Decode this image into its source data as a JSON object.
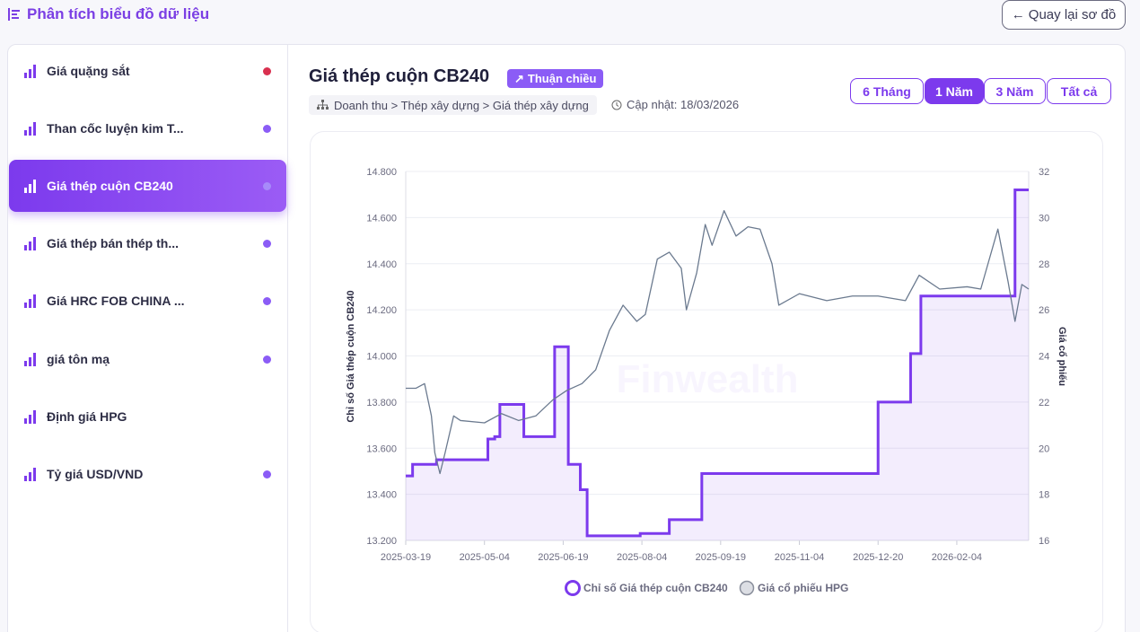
{
  "app": {
    "title": "Phân tích biểu đồ dữ liệu",
    "back_label": "Quay lại sơ đồ"
  },
  "sidebar": {
    "items": [
      {
        "label": "Giá quặng sắt",
        "dot_color": "#d9304f",
        "active": false
      },
      {
        "label": "Than cốc luyện kim T...",
        "dot_color": "#8b5cf6",
        "active": false
      },
      {
        "label": "Giá thép cuộn CB240",
        "dot_color": "#a78bfa",
        "active": true
      },
      {
        "label": "Giá thép bán thép th...",
        "dot_color": "#8b5cf6",
        "active": false
      },
      {
        "label": "Giá HRC FOB CHINA ...",
        "dot_color": "#8b5cf6",
        "active": false
      },
      {
        "label": "giá tôn mạ",
        "dot_color": "#8b5cf6",
        "active": false
      },
      {
        "label": "Định giá HPG",
        "dot_color": null,
        "active": false
      },
      {
        "label": "Tỷ giá USD/VND",
        "dot_color": "#8b5cf6",
        "active": false
      }
    ]
  },
  "header": {
    "title": "Giá thép cuộn CB240",
    "badge": "Thuận chiều",
    "breadcrumb": "Doanh thu > Thép xây dựng > Giá thép xây dựng",
    "updated": "Cập nhật: 18/03/2026"
  },
  "ranges": [
    {
      "label": "6 Tháng",
      "active": false
    },
    {
      "label": "1 Năm",
      "active": true
    },
    {
      "label": "3 Năm",
      "active": false
    },
    {
      "label": "Tất cả",
      "active": false
    }
  ],
  "colors": {
    "accent": "#7c3aed",
    "secondary_line": "#6b7a8f"
  },
  "chart_data": {
    "type": "line",
    "watermark": "Finwealth",
    "ylabel_left": "Chỉ số Giá thép cuộn CB240",
    "ylabel_right": "Giá cổ phiếu",
    "x_ticks": [
      "2025-03-19",
      "2025-05-04",
      "2025-06-19",
      "2025-08-04",
      "2025-09-19",
      "2025-11-04",
      "2025-12-20",
      "2026-02-04"
    ],
    "x_range": [
      "2025-03-19",
      "2026-03-18"
    ],
    "y_left_ticks": [
      "13.200",
      "13.400",
      "13.600",
      "13.800",
      "14.000",
      "14.200",
      "14.400",
      "14.600",
      "14.800"
    ],
    "y_left_range": [
      13200,
      14800
    ],
    "y_right_ticks": [
      "16",
      "18",
      "20",
      "22",
      "24",
      "26",
      "28",
      "30",
      "32"
    ],
    "y_right_range": [
      16,
      32
    ],
    "grid": true,
    "legend_position": "bottom",
    "series": [
      {
        "name": "Chỉ số Giá thép cuộn CB240",
        "axis": "left",
        "style": "step-area",
        "color": "#7c3aed",
        "points": [
          [
            "2025-03-19",
            13480
          ],
          [
            "2025-03-23",
            13530
          ],
          [
            "2025-04-06",
            13550
          ],
          [
            "2025-05-06",
            13640
          ],
          [
            "2025-05-10",
            13650
          ],
          [
            "2025-05-13",
            13790
          ],
          [
            "2025-05-27",
            13650
          ],
          [
            "2025-06-14",
            14040
          ],
          [
            "2025-06-22",
            13530
          ],
          [
            "2025-06-29",
            13420
          ],
          [
            "2025-07-03",
            13220
          ],
          [
            "2025-08-03",
            13230
          ],
          [
            "2025-08-20",
            13290
          ],
          [
            "2025-09-08",
            13490
          ],
          [
            "2025-12-20",
            13800
          ],
          [
            "2026-01-08",
            14010
          ],
          [
            "2026-01-14",
            14260
          ],
          [
            "2026-03-10",
            14720
          ],
          [
            "2026-03-18",
            14720
          ]
        ]
      },
      {
        "name": "Giá cổ phiếu HPG",
        "axis": "right",
        "style": "line",
        "color": "#6b7a8f",
        "points": [
          [
            "2025-03-19",
            22.6
          ],
          [
            "2025-03-25",
            22.6
          ],
          [
            "2025-03-30",
            22.8
          ],
          [
            "2025-04-03",
            21.4
          ],
          [
            "2025-04-05",
            19.8
          ],
          [
            "2025-04-08",
            18.9
          ],
          [
            "2025-04-11",
            19.8
          ],
          [
            "2025-04-16",
            21.4
          ],
          [
            "2025-04-20",
            21.2
          ],
          [
            "2025-05-04",
            21.1
          ],
          [
            "2025-05-14",
            21.5
          ],
          [
            "2025-05-24",
            21.2
          ],
          [
            "2025-06-03",
            21.4
          ],
          [
            "2025-06-13",
            22.1
          ],
          [
            "2025-06-21",
            22.5
          ],
          [
            "2025-06-30",
            22.8
          ],
          [
            "2025-07-08",
            23.4
          ],
          [
            "2025-07-16",
            25.1
          ],
          [
            "2025-07-24",
            26.2
          ],
          [
            "2025-08-01",
            25.5
          ],
          [
            "2025-08-06",
            25.8
          ],
          [
            "2025-08-13",
            28.2
          ],
          [
            "2025-08-20",
            28.5
          ],
          [
            "2025-08-27",
            27.8
          ],
          [
            "2025-08-30",
            26.0
          ],
          [
            "2025-09-05",
            27.6
          ],
          [
            "2025-09-10",
            29.7
          ],
          [
            "2025-09-14",
            28.8
          ],
          [
            "2025-09-21",
            30.3
          ],
          [
            "2025-09-28",
            29.2
          ],
          [
            "2025-10-05",
            29.6
          ],
          [
            "2025-10-12",
            29.5
          ],
          [
            "2025-10-19",
            28.0
          ],
          [
            "2025-10-23",
            26.2
          ],
          [
            "2025-11-04",
            26.7
          ],
          [
            "2025-11-20",
            26.4
          ],
          [
            "2025-12-05",
            26.6
          ],
          [
            "2025-12-20",
            26.6
          ],
          [
            "2026-01-05",
            26.4
          ],
          [
            "2026-01-13",
            27.5
          ],
          [
            "2026-01-25",
            26.9
          ],
          [
            "2026-02-10",
            27.0
          ],
          [
            "2026-02-18",
            26.9
          ],
          [
            "2026-02-28",
            29.5
          ],
          [
            "2026-03-06",
            27.2
          ],
          [
            "2026-03-10",
            25.5
          ],
          [
            "2026-03-14",
            27.1
          ],
          [
            "2026-03-18",
            26.9
          ]
        ]
      }
    ]
  }
}
